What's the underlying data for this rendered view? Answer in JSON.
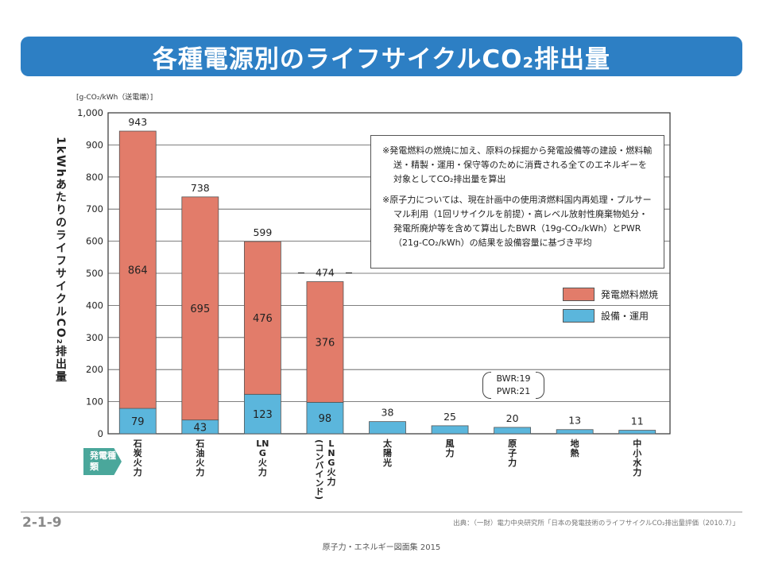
{
  "title": "各種電源別のライフサイクルCO₂排出量",
  "unit_label": "[g-CO₂/kWh（送電端）]",
  "y_axis_label": "1kWhあたりのライフサイクルCO₂排出量",
  "category_group_label": "発電種類",
  "legend": {
    "fuel": {
      "label": "発電燃料燃焼",
      "color": "#e27c6a"
    },
    "equipment": {
      "label": "設備・運用",
      "color": "#5bb6dc"
    }
  },
  "notes": [
    "※発電燃料の燃焼に加え、原料の採掘から発電設備等の建設・燃料輸送・精製・運用・保守等のために消費される全てのエネルギーを対象としてCO₂排出量を算出",
    "※原子力については、現在計画中の使用済燃料国内再処理・プルサーマル利用（1回リサイクルを前提）・高レベル放射性廃棄物処分・発電所廃炉等を含めて算出したBWR（19g-CO₂/kWh）とPWR（21g-CO₂/kWh）の結果を設備容量に基づき平均"
  ],
  "bwr_pwr": {
    "line1": "BWR:19",
    "line2": "PWR:21"
  },
  "page_number": "2-1-9",
  "source": "出典：（一財）電力中央研究所「日本の発電技術のライフサイクルCO₂排出量評価（2010.7）」",
  "booklet": "原子力・エネルギー図面集 2015",
  "chart_data": {
    "type": "bar",
    "stacked": true,
    "ylim": [
      0,
      1000
    ],
    "yticks": [
      "0",
      "100",
      "200",
      "300",
      "400",
      "500",
      "600",
      "700",
      "800",
      "900",
      "1,000"
    ],
    "grid": true,
    "categories": [
      {
        "label": "石炭火力",
        "sub": ""
      },
      {
        "label": "石油火力",
        "sub": ""
      },
      {
        "label": "LNG火力",
        "sub": ""
      },
      {
        "label": "LNG火力",
        "sub": "(コンバインド)"
      },
      {
        "label": "太陽光",
        "sub": ""
      },
      {
        "label": "風力",
        "sub": ""
      },
      {
        "label": "原子力",
        "sub": ""
      },
      {
        "label": "地熱",
        "sub": ""
      },
      {
        "label": "中小水力",
        "sub": ""
      }
    ],
    "series": [
      {
        "name": "設備・運用",
        "values": [
          79,
          43,
          123,
          98,
          38,
          25,
          20,
          13,
          11
        ],
        "labels": [
          "79",
          "43",
          "123",
          "98",
          "",
          "",
          "",
          "",
          ""
        ]
      },
      {
        "name": "発電燃料燃焼",
        "values": [
          864,
          695,
          476,
          376,
          0,
          0,
          0,
          0,
          0
        ],
        "labels": [
          "864",
          "695",
          "476",
          "376",
          "",
          "",
          "",
          "",
          ""
        ]
      }
    ],
    "totals": [
      "943",
      "738",
      "599",
      "474",
      "38",
      "25",
      "20",
      "13",
      "11"
    ]
  }
}
